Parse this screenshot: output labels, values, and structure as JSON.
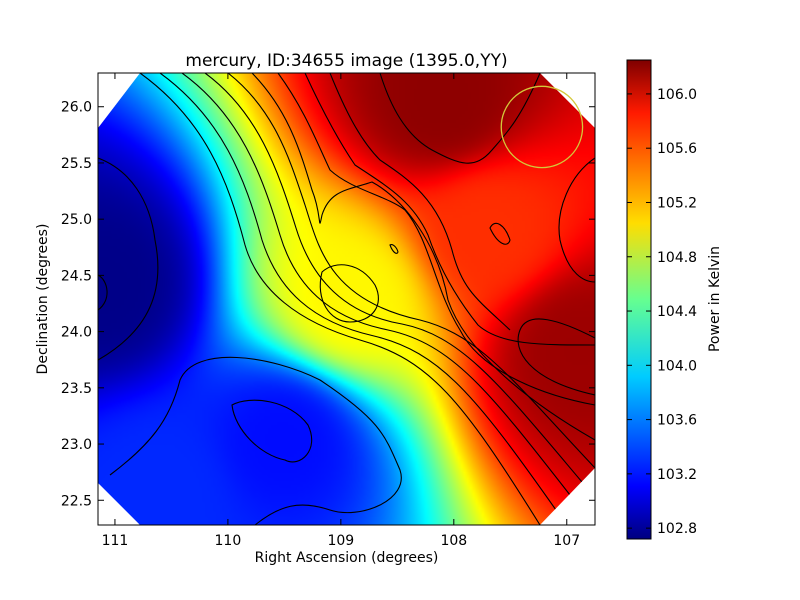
{
  "chart_data": {
    "type": "heatmap",
    "title": "mercury, ID:34655 image (1395.0,YY)",
    "xlabel": "Right Ascension (degrees)",
    "ylabel": "Declination (degrees)",
    "xlim": [
      111.15,
      106.75
    ],
    "ylim": [
      22.28,
      26.3
    ],
    "x_ticks": [
      "111",
      "110",
      "109",
      "108",
      "107"
    ],
    "y_ticks": [
      "22.5",
      "23.0",
      "23.5",
      "24.0",
      "24.5",
      "25.0",
      "25.5",
      "26.0"
    ],
    "colorbar": {
      "label": "Power in Kelvin",
      "range": [
        102.72,
        106.25
      ],
      "ticks": [
        "102.8",
        "103.2",
        "103.6",
        "104.0",
        "104.4",
        "104.8",
        "105.2",
        "105.6",
        "106.0"
      ],
      "colormap": "jet"
    },
    "contours": "black level lines, ~0.23 K spacing",
    "field": [
      {
        "ra": 111.1,
        "dec": 24.4,
        "power": 102.75
      },
      {
        "ra": 109.5,
        "dec": 23.05,
        "power": 103.2
      },
      {
        "ra": 110.6,
        "dec": 22.6,
        "power": 103.3
      },
      {
        "ra": 108.9,
        "dec": 24.3,
        "power": 104.95
      },
      {
        "ra": 108.1,
        "dec": 26.05,
        "power": 106.2
      },
      {
        "ra": 106.9,
        "dec": 23.85,
        "power": 106.15
      },
      {
        "ra": 107.7,
        "dec": 24.9,
        "power": 105.65
      }
    ],
    "marker": {
      "shape": "circle",
      "color": "#d4c83a",
      "ra": 107.22,
      "dec": 25.82,
      "radius_deg": 0.36
    }
  }
}
